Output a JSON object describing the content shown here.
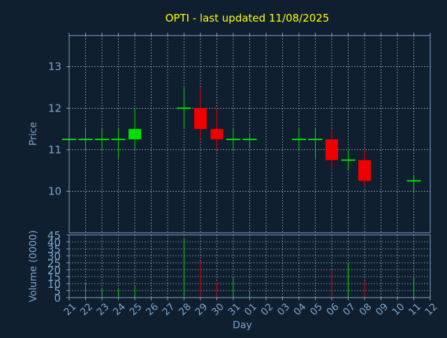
{
  "colors": {
    "background": "#0f1f30",
    "frame": "#8aa0c8",
    "grid": "#c8d0dc",
    "title": "#ffff00",
    "axis_text": "#7fa3c8",
    "up": "#00e000",
    "down": "#ee0000"
  },
  "chart_data": {
    "type": "candlestick",
    "title": "OPTI - last updated 11/08/2025",
    "xlabel": "Day",
    "x_ticks": [
      "21",
      "22",
      "23",
      "24",
      "25",
      "26",
      "27",
      "28",
      "29",
      "30",
      "31",
      "01",
      "02",
      "03",
      "04",
      "05",
      "06",
      "07",
      "08",
      "09",
      "10",
      "11",
      "12"
    ],
    "price": {
      "ylabel": "Price",
      "ylim": [
        9,
        13.75
      ],
      "y_ticks": [
        10,
        11,
        12,
        13
      ],
      "candles": [
        {
          "day": "21",
          "open": 11.25,
          "high": 11.25,
          "low": 11.25,
          "close": 11.25
        },
        {
          "day": "22",
          "open": 11.25,
          "high": 11.5,
          "low": 11.0,
          "close": 11.25
        },
        {
          "day": "23",
          "open": 11.25,
          "high": 11.5,
          "low": 11.0,
          "close": 11.25
        },
        {
          "day": "24",
          "open": 11.25,
          "high": 11.5,
          "low": 10.8,
          "close": 11.25
        },
        {
          "day": "25",
          "open": 11.25,
          "high": 12.0,
          "low": 11.0,
          "close": 11.5
        },
        {
          "day": "28",
          "open": 12.0,
          "high": 12.5,
          "low": 11.5,
          "close": 12.0
        },
        {
          "day": "29",
          "open": 12.0,
          "high": 12.5,
          "low": 11.25,
          "close": 11.5
        },
        {
          "day": "30",
          "open": 11.5,
          "high": 12.0,
          "low": 11.0,
          "close": 11.25
        },
        {
          "day": "31",
          "open": 11.25,
          "high": 11.5,
          "low": 11.0,
          "close": 11.25
        },
        {
          "day": "01",
          "open": 11.25,
          "high": 11.4,
          "low": 11.05,
          "close": 11.25
        },
        {
          "day": "04",
          "open": 11.25,
          "high": 11.5,
          "low": 11.0,
          "close": 11.25
        },
        {
          "day": "05",
          "open": 11.25,
          "high": 11.5,
          "low": 10.8,
          "close": 11.25
        },
        {
          "day": "06",
          "open": 11.25,
          "high": 11.5,
          "low": 10.5,
          "close": 10.75
        },
        {
          "day": "07",
          "open": 10.75,
          "high": 11.0,
          "low": 10.5,
          "close": 10.75
        },
        {
          "day": "08",
          "open": 10.75,
          "high": 11.0,
          "low": 10.1,
          "close": 10.25
        },
        {
          "day": "11",
          "open": 10.25,
          "high": 10.4,
          "low": 10.0,
          "close": 10.25
        }
      ]
    },
    "volume": {
      "ylabel": "Volume (0000)",
      "ylim": [
        0,
        45
      ],
      "y_ticks": [
        0,
        5,
        10,
        15,
        20,
        25,
        30,
        35,
        40,
        45
      ],
      "bars": [
        {
          "day": "21",
          "value": 0,
          "dir": "up"
        },
        {
          "day": "22",
          "value": 11,
          "dir": "up"
        },
        {
          "day": "23",
          "value": 6,
          "dir": "up"
        },
        {
          "day": "24",
          "value": 6,
          "dir": "up"
        },
        {
          "day": "25",
          "value": 8,
          "dir": "up"
        },
        {
          "day": "28",
          "value": 42,
          "dir": "up"
        },
        {
          "day": "29",
          "value": 26,
          "dir": "down"
        },
        {
          "day": "30",
          "value": 11,
          "dir": "down"
        },
        {
          "day": "31",
          "value": 15,
          "dir": "up"
        },
        {
          "day": "01",
          "value": 4,
          "dir": "up"
        },
        {
          "day": "04",
          "value": 0,
          "dir": "up"
        },
        {
          "day": "05",
          "value": 0,
          "dir": "up"
        },
        {
          "day": "06",
          "value": 20,
          "dir": "down"
        },
        {
          "day": "07",
          "value": 25,
          "dir": "up"
        },
        {
          "day": "08",
          "value": 12,
          "dir": "down"
        },
        {
          "day": "11",
          "value": 15,
          "dir": "up"
        }
      ]
    },
    "grid": true
  }
}
